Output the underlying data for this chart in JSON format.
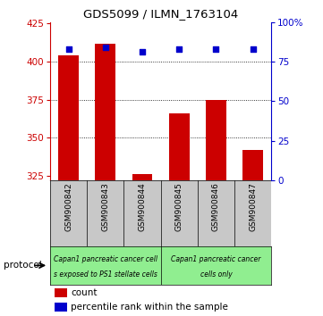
{
  "title": "GDS5099 / ILMN_1763104",
  "samples": [
    "GSM900842",
    "GSM900843",
    "GSM900844",
    "GSM900845",
    "GSM900846",
    "GSM900847"
  ],
  "counts": [
    404,
    412,
    326,
    366,
    375,
    342
  ],
  "percentiles": [
    83,
    84,
    81,
    83,
    83,
    83
  ],
  "ylim_left": [
    322,
    426
  ],
  "ylim_right": [
    0,
    100
  ],
  "yticks_left": [
    325,
    350,
    375,
    400,
    425
  ],
  "yticks_right": [
    0,
    25,
    50,
    75,
    100
  ],
  "ytick_labels_right": [
    "0",
    "25",
    "50",
    "75",
    "100%"
  ],
  "gridlines_at": [
    350,
    375,
    400
  ],
  "bar_color": "#CC0000",
  "scatter_color": "#0000CC",
  "protocol_text1a": "Capan1 pancreatic cancer cell",
  "protocol_text1b": "s exposed to PS1 stellate cells",
  "protocol_text2a": "Capan1 pancreatic cancer",
  "protocol_text2b": "cells only",
  "protocol_bg": "#90EE90",
  "xtick_bg": "#C8C8C8",
  "legend_count_color": "#CC0000",
  "legend_percentile_color": "#0000CC",
  "left_axis_color": "#CC0000",
  "right_axis_color": "#0000CC"
}
